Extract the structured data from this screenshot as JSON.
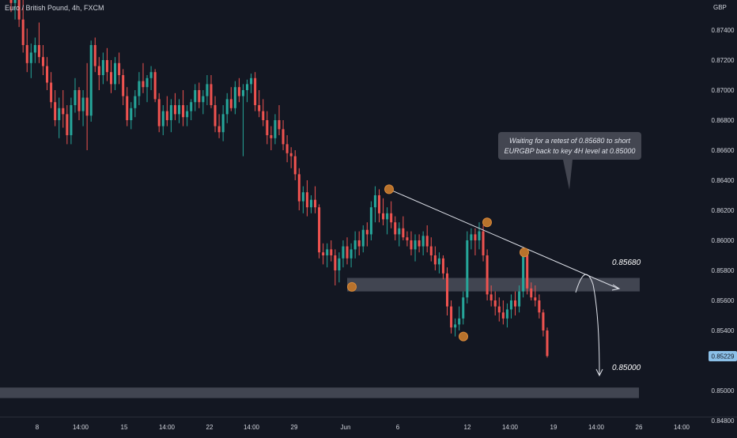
{
  "header": {
    "symbol_title": "Euro / British Pound, 4h, FXCM",
    "currency": "GBP"
  },
  "colors": {
    "background": "#131722",
    "up": "#26a69a",
    "down": "#ef5350",
    "zone": "#4a4e59",
    "pivot": "#b8722c",
    "annotation_bg": "#434651",
    "price_badge": "#8bc0e8",
    "text": "#d1d4dc"
  },
  "chart_data": {
    "type": "candlestick",
    "title": "Euro / British Pound, 4h, FXCM",
    "ylabel": "GBP",
    "ylim": [
      0.8475,
      0.8763
    ],
    "grid": false,
    "y_ticks": [
      "0.87400",
      "0.87200",
      "0.87000",
      "0.86800",
      "0.86600",
      "0.86400",
      "0.86200",
      "0.86000",
      "0.85800",
      "0.85600",
      "0.85400",
      "0.85000",
      "0.84800"
    ],
    "x_ticks": [
      "8",
      "14:00",
      "15",
      "14:00",
      "22",
      "14:00",
      "29",
      "Jun",
      "6",
      "12",
      "14:00",
      "19",
      "14:00",
      "26",
      "14:00"
    ],
    "last_price": "0.85229",
    "candles": [
      [
        0.8768,
        0.8772,
        0.8752,
        0.8758
      ],
      [
        0.8758,
        0.877,
        0.8747,
        0.876
      ],
      [
        0.876,
        0.8768,
        0.8742,
        0.8747
      ],
      [
        0.8747,
        0.8762,
        0.8725,
        0.873
      ],
      [
        0.873,
        0.8741,
        0.8712,
        0.8718
      ],
      [
        0.8718,
        0.8731,
        0.8708,
        0.8725
      ],
      [
        0.8725,
        0.8735,
        0.8718,
        0.873
      ],
      [
        0.873,
        0.8745,
        0.8718,
        0.8722
      ],
      [
        0.8722,
        0.873,
        0.871,
        0.8716
      ],
      [
        0.8716,
        0.8722,
        0.87,
        0.8705
      ],
      [
        0.8705,
        0.8712,
        0.8688,
        0.8692
      ],
      [
        0.8692,
        0.87,
        0.8676,
        0.868
      ],
      [
        0.868,
        0.8695,
        0.8668,
        0.8688
      ],
      [
        0.8688,
        0.87,
        0.8675,
        0.8684
      ],
      [
        0.8684,
        0.869,
        0.8664,
        0.867
      ],
      [
        0.867,
        0.8695,
        0.8664,
        0.869
      ],
      [
        0.869,
        0.8708,
        0.8685,
        0.87
      ],
      [
        0.87,
        0.8702,
        0.868,
        0.8686
      ],
      [
        0.8686,
        0.87,
        0.8676,
        0.8695
      ],
      [
        0.8695,
        0.8718,
        0.866,
        0.8683
      ],
      [
        0.8683,
        0.8733,
        0.8679,
        0.873
      ],
      [
        0.873,
        0.8735,
        0.8712,
        0.8716
      ],
      [
        0.8716,
        0.8722,
        0.87,
        0.871
      ],
      [
        0.871,
        0.8725,
        0.8704,
        0.872
      ],
      [
        0.872,
        0.8728,
        0.8706,
        0.8712
      ],
      [
        0.8712,
        0.872,
        0.8698,
        0.8704
      ],
      [
        0.8704,
        0.8722,
        0.87,
        0.8718
      ],
      [
        0.8718,
        0.8725,
        0.8704,
        0.871
      ],
      [
        0.871,
        0.8714,
        0.869,
        0.8696
      ],
      [
        0.8696,
        0.8702,
        0.8676,
        0.868
      ],
      [
        0.868,
        0.8692,
        0.8674,
        0.8688
      ],
      [
        0.8688,
        0.87,
        0.8682,
        0.8696
      ],
      [
        0.8696,
        0.8712,
        0.869,
        0.8706
      ],
      [
        0.8706,
        0.8718,
        0.8698,
        0.8702
      ],
      [
        0.8702,
        0.871,
        0.8692,
        0.8708
      ],
      [
        0.8708,
        0.8716,
        0.87,
        0.8712
      ],
      [
        0.8712,
        0.8714,
        0.8692,
        0.8694
      ],
      [
        0.8694,
        0.8698,
        0.8672,
        0.8676
      ],
      [
        0.8676,
        0.869,
        0.867,
        0.8686
      ],
      [
        0.8686,
        0.8696,
        0.8676,
        0.868
      ],
      [
        0.868,
        0.8694,
        0.8672,
        0.869
      ],
      [
        0.869,
        0.8698,
        0.868,
        0.8684
      ],
      [
        0.8684,
        0.8694,
        0.8678,
        0.869
      ],
      [
        0.869,
        0.87,
        0.8676,
        0.8682
      ],
      [
        0.8682,
        0.869,
        0.8676,
        0.8686
      ],
      [
        0.8686,
        0.8694,
        0.868,
        0.8692
      ],
      [
        0.8692,
        0.8704,
        0.8686,
        0.87
      ],
      [
        0.87,
        0.8705,
        0.8688,
        0.8692
      ],
      [
        0.8692,
        0.87,
        0.8684,
        0.8696
      ],
      [
        0.8696,
        0.871,
        0.869,
        0.8704
      ],
      [
        0.8704,
        0.871,
        0.8688,
        0.869
      ],
      [
        0.869,
        0.8696,
        0.8672,
        0.8676
      ],
      [
        0.8676,
        0.8684,
        0.8668,
        0.8672
      ],
      [
        0.8672,
        0.869,
        0.8666,
        0.8684
      ],
      [
        0.8684,
        0.8698,
        0.8678,
        0.8694
      ],
      [
        0.8694,
        0.8702,
        0.8686,
        0.8688
      ],
      [
        0.8688,
        0.8706,
        0.8684,
        0.8702
      ],
      [
        0.8702,
        0.8708,
        0.8692,
        0.8696
      ],
      [
        0.8696,
        0.8704,
        0.8656,
        0.87
      ],
      [
        0.87,
        0.8707,
        0.8692,
        0.8704
      ],
      [
        0.8704,
        0.8711,
        0.8698,
        0.8708
      ],
      [
        0.8708,
        0.8712,
        0.8686,
        0.869
      ],
      [
        0.869,
        0.87,
        0.8682,
        0.8686
      ],
      [
        0.8686,
        0.8694,
        0.8676,
        0.868
      ],
      [
        0.868,
        0.8686,
        0.8664,
        0.867
      ],
      [
        0.867,
        0.8676,
        0.866,
        0.8668
      ],
      [
        0.8668,
        0.8684,
        0.8664,
        0.868
      ],
      [
        0.868,
        0.869,
        0.867,
        0.8674
      ],
      [
        0.8674,
        0.868,
        0.866,
        0.8664
      ],
      [
        0.8664,
        0.867,
        0.8652,
        0.8658
      ],
      [
        0.8658,
        0.8662,
        0.8648,
        0.8656
      ],
      [
        0.8656,
        0.866,
        0.864,
        0.8644
      ],
      [
        0.8644,
        0.8648,
        0.862,
        0.8626
      ],
      [
        0.8626,
        0.8636,
        0.8618,
        0.8632
      ],
      [
        0.8632,
        0.864,
        0.8616,
        0.8622
      ],
      [
        0.8622,
        0.863,
        0.8618,
        0.8627
      ],
      [
        0.8627,
        0.8636,
        0.8618,
        0.8622
      ],
      [
        0.8622,
        0.8624,
        0.8588,
        0.8592
      ],
      [
        0.8592,
        0.8598,
        0.8584,
        0.859
      ],
      [
        0.859,
        0.8598,
        0.8582,
        0.8594
      ],
      [
        0.8594,
        0.86,
        0.8586,
        0.859
      ],
      [
        0.859,
        0.8594,
        0.857,
        0.858
      ],
      [
        0.858,
        0.8592,
        0.8572,
        0.8588
      ],
      [
        0.8588,
        0.86,
        0.8582,
        0.8596
      ],
      [
        0.8596,
        0.8602,
        0.8584,
        0.8588
      ],
      [
        0.8588,
        0.8598,
        0.8582,
        0.8594
      ],
      [
        0.8594,
        0.8606,
        0.8588,
        0.86
      ],
      [
        0.86,
        0.8606,
        0.859,
        0.8596
      ],
      [
        0.8596,
        0.861,
        0.8592,
        0.8607
      ],
      [
        0.8607,
        0.8612,
        0.8596,
        0.8604
      ],
      [
        0.8604,
        0.8626,
        0.86,
        0.8622
      ],
      [
        0.8622,
        0.8636,
        0.8612,
        0.863
      ],
      [
        0.863,
        0.8634,
        0.8612,
        0.8618
      ],
      [
        0.8618,
        0.8628,
        0.861,
        0.8614
      ],
      [
        0.8614,
        0.8622,
        0.8604,
        0.8618
      ],
      [
        0.8618,
        0.8626,
        0.8608,
        0.8612
      ],
      [
        0.8612,
        0.8616,
        0.86,
        0.8604
      ],
      [
        0.8604,
        0.8612,
        0.8596,
        0.8608
      ],
      [
        0.8608,
        0.8616,
        0.86,
        0.8602
      ],
      [
        0.8602,
        0.8606,
        0.8596,
        0.86
      ],
      [
        0.86,
        0.8606,
        0.859,
        0.8594
      ],
      [
        0.8594,
        0.8604,
        0.8586,
        0.86
      ],
      [
        0.86,
        0.8604,
        0.8592,
        0.8596
      ],
      [
        0.8596,
        0.8606,
        0.859,
        0.8603
      ],
      [
        0.8603,
        0.861,
        0.8592,
        0.8596
      ],
      [
        0.8596,
        0.8602,
        0.8586,
        0.859
      ],
      [
        0.859,
        0.8596,
        0.858,
        0.8584
      ],
      [
        0.8584,
        0.8592,
        0.8578,
        0.8588
      ],
      [
        0.8588,
        0.859,
        0.8574,
        0.8578
      ],
      [
        0.8578,
        0.8582,
        0.855,
        0.8556
      ],
      [
        0.8556,
        0.856,
        0.8538,
        0.8542
      ],
      [
        0.8542,
        0.8548,
        0.8536,
        0.8544
      ],
      [
        0.8544,
        0.8556,
        0.854,
        0.8548
      ],
      [
        0.8548,
        0.8566,
        0.8544,
        0.8562
      ],
      [
        0.8562,
        0.8606,
        0.8558,
        0.86
      ],
      [
        0.86,
        0.8608,
        0.8594,
        0.8604
      ],
      [
        0.8604,
        0.8608,
        0.859,
        0.86
      ],
      [
        0.86,
        0.8612,
        0.8594,
        0.8606
      ],
      [
        0.8606,
        0.861,
        0.8586,
        0.859
      ],
      [
        0.859,
        0.8594,
        0.856,
        0.8564
      ],
      [
        0.8564,
        0.857,
        0.8556,
        0.856
      ],
      [
        0.856,
        0.8566,
        0.855,
        0.8556
      ],
      [
        0.8556,
        0.8562,
        0.8546,
        0.8552
      ],
      [
        0.8552,
        0.856,
        0.8544,
        0.8548
      ],
      [
        0.8548,
        0.8558,
        0.8542,
        0.8554
      ],
      [
        0.8554,
        0.8564,
        0.8548,
        0.856
      ],
      [
        0.856,
        0.8566,
        0.855,
        0.8556
      ],
      [
        0.8556,
        0.857,
        0.8552,
        0.8566
      ],
      [
        0.8566,
        0.8594,
        0.8562,
        0.859
      ],
      [
        0.859,
        0.8594,
        0.8564,
        0.8568
      ],
      [
        0.8568,
        0.8572,
        0.856,
        0.8562
      ],
      [
        0.8562,
        0.857,
        0.8556,
        0.856
      ],
      [
        0.856,
        0.8564,
        0.8548,
        0.8552
      ],
      [
        0.8552,
        0.8554,
        0.8536,
        0.854
      ],
      [
        0.854,
        0.8542,
        0.8522,
        0.8523
      ]
    ],
    "annotations": {
      "resistance_label": "0.85680",
      "target_label": "0.85000",
      "note_line1": "Waiting for a retest of 0.85680 to short",
      "note_line2": "EURGBP back to key 4H level at 0.85000",
      "resistance_zone": [
        0.8566,
        0.8575
      ],
      "target_zone": [
        0.8495,
        0.8502
      ],
      "trendline": [
        [
          0.8634,
          0.8576
        ]
      ],
      "pivots": [
        0.8569,
        0.8634,
        0.8612,
        0.8536,
        0.8592
      ]
    }
  }
}
